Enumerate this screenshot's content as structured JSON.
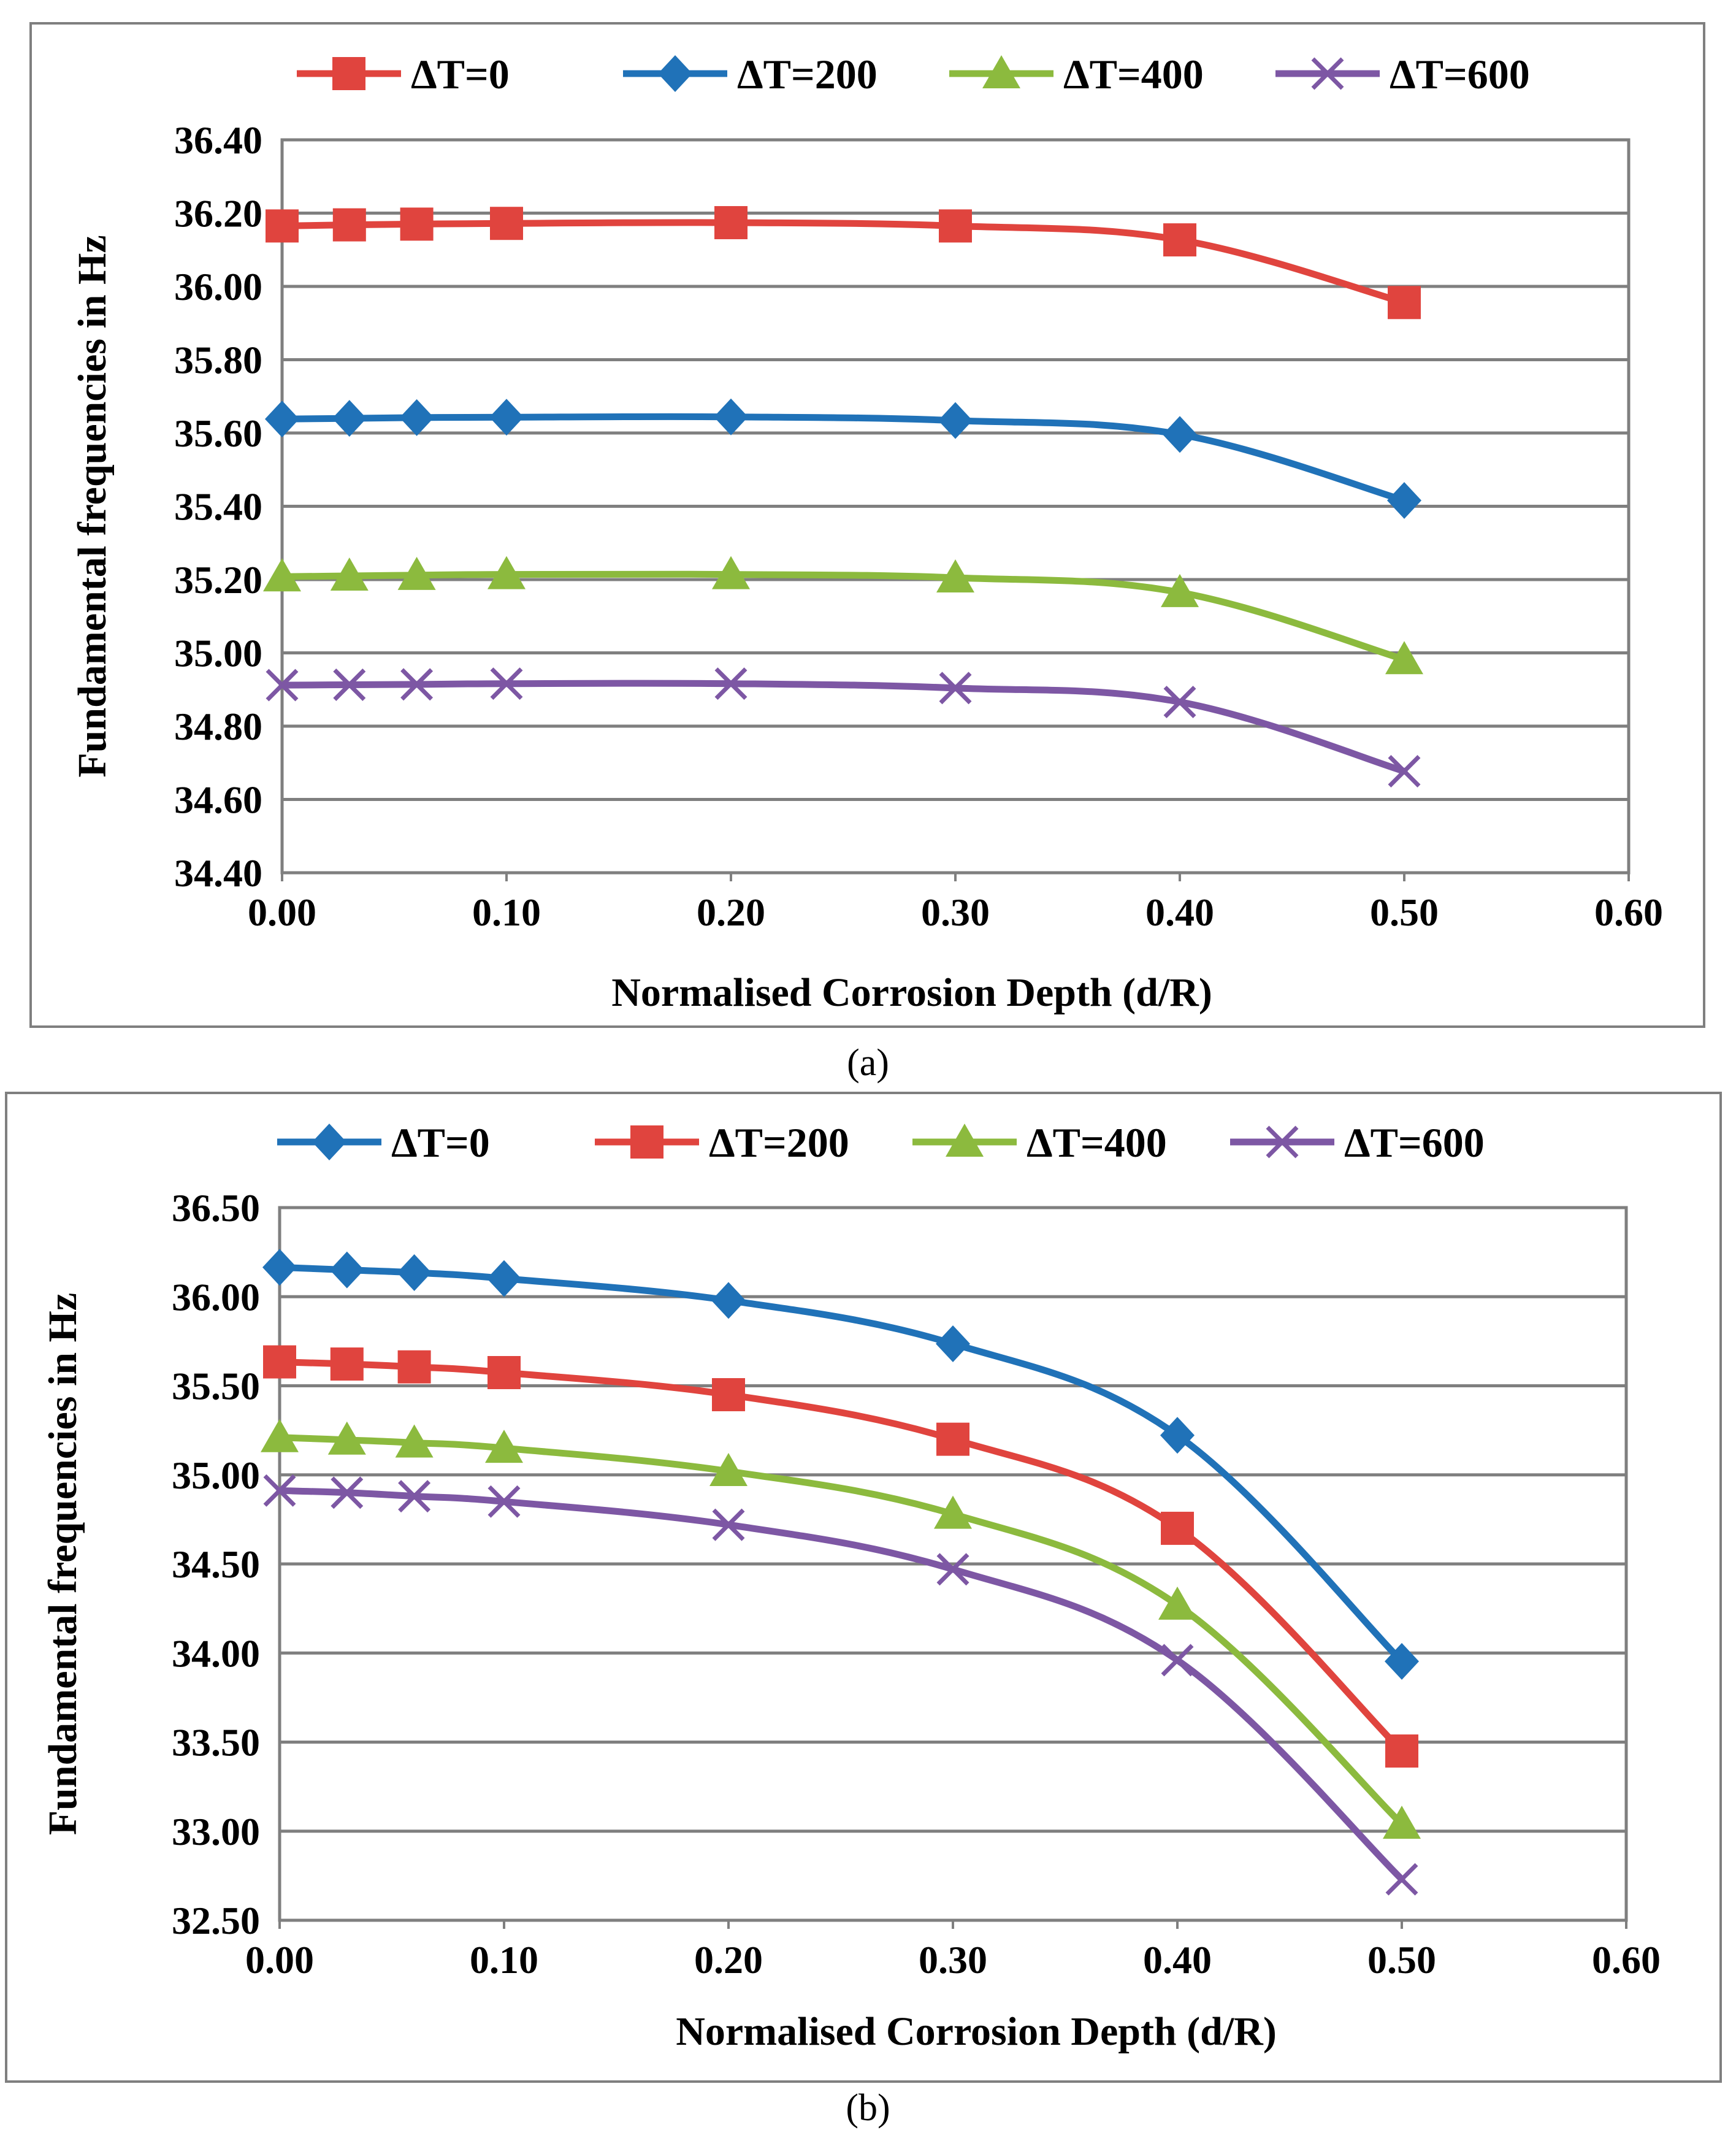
{
  "figure": {
    "captions": [
      "(a)",
      "(b)"
    ]
  },
  "chart_data": [
    {
      "type": "line",
      "panel": "a",
      "xlabel": "Normalised Corrosion Depth (d/R)",
      "ylabel": "Fundamental frequencies in Hz",
      "xlim": [
        0,
        0.6
      ],
      "ylim": [
        34.4,
        36.4
      ],
      "xticks": [
        0,
        0.1,
        0.2,
        0.3,
        0.4,
        0.5,
        0.6
      ],
      "xtick_labels": [
        "0.00",
        "0.10",
        "0.20",
        "0.30",
        "0.40",
        "0.50",
        "0.60"
      ],
      "yticks": [
        34.4,
        34.6,
        34.8,
        35.0,
        35.2,
        35.4,
        35.6,
        35.8,
        36.0,
        36.2,
        36.4
      ],
      "ytick_labels": [
        "34.40",
        "34.60",
        "34.80",
        "35.00",
        "35.20",
        "35.40",
        "35.60",
        "35.80",
        "36.00",
        "36.20",
        "36.40"
      ],
      "grid": true,
      "legend_position": "top",
      "x": [
        0,
        0.03,
        0.06,
        0.1,
        0.2,
        0.3,
        0.4,
        0.5
      ],
      "series": [
        {
          "name": "ΔT=0",
          "color": "#e0443e",
          "marker": "square",
          "values": [
            36.165,
            36.168,
            36.17,
            36.172,
            36.174,
            36.165,
            36.127,
            35.956
          ]
        },
        {
          "name": "ΔT=200",
          "color": "#2072b8",
          "marker": "diamond",
          "values": [
            35.638,
            35.64,
            35.642,
            35.643,
            35.644,
            35.634,
            35.596,
            35.416
          ]
        },
        {
          "name": "ΔT=400",
          "color": "#8cba3e",
          "marker": "triangle",
          "values": [
            35.208,
            35.21,
            35.212,
            35.214,
            35.214,
            35.205,
            35.165,
            34.982
          ]
        },
        {
          "name": "ΔT=600",
          "color": "#7d57a4",
          "marker": "x",
          "values": [
            34.912,
            34.913,
            34.914,
            34.916,
            34.916,
            34.904,
            34.866,
            34.677
          ]
        }
      ]
    },
    {
      "type": "line",
      "panel": "b",
      "xlabel": "Normalised Corrosion Depth (d/R)",
      "ylabel": "Fundamental frequencies in Hz",
      "xlim": [
        0,
        0.6
      ],
      "ylim": [
        32.5,
        36.5
      ],
      "xticks": [
        0,
        0.1,
        0.2,
        0.3,
        0.4,
        0.5,
        0.6
      ],
      "xtick_labels": [
        "0.00",
        "0.10",
        "0.20",
        "0.30",
        "0.40",
        "0.50",
        "0.60"
      ],
      "yticks": [
        32.5,
        33.0,
        33.5,
        34.0,
        34.5,
        35.0,
        35.5,
        36.0,
        36.5
      ],
      "ytick_labels": [
        "32.50",
        "33.00",
        "33.50",
        "34.00",
        "34.50",
        "35.00",
        "35.50",
        "36.00",
        "36.50"
      ],
      "grid": true,
      "legend_position": "top",
      "x": [
        0,
        0.03,
        0.06,
        0.1,
        0.2,
        0.3,
        0.4,
        0.5
      ],
      "series": [
        {
          "name": "ΔT=0",
          "color": "#2072b8",
          "marker": "diamond",
          "values": [
            36.165,
            36.15,
            36.135,
            36.102,
            35.979,
            35.736,
            35.222,
            33.953
          ]
        },
        {
          "name": "ΔT=200",
          "color": "#e0443e",
          "marker": "square",
          "values": [
            35.634,
            35.622,
            35.606,
            35.574,
            35.45,
            35.2,
            34.7,
            33.45
          ]
        },
        {
          "name": "ΔT=400",
          "color": "#8cba3e",
          "marker": "triangle",
          "values": [
            35.21,
            35.196,
            35.18,
            35.15,
            35.02,
            34.78,
            34.27,
            33.04
          ]
        },
        {
          "name": "ΔT=600",
          "color": "#7d57a4",
          "marker": "x",
          "values": [
            34.912,
            34.9,
            34.88,
            34.85,
            34.72,
            34.47,
            33.96,
            32.73
          ]
        }
      ]
    }
  ]
}
